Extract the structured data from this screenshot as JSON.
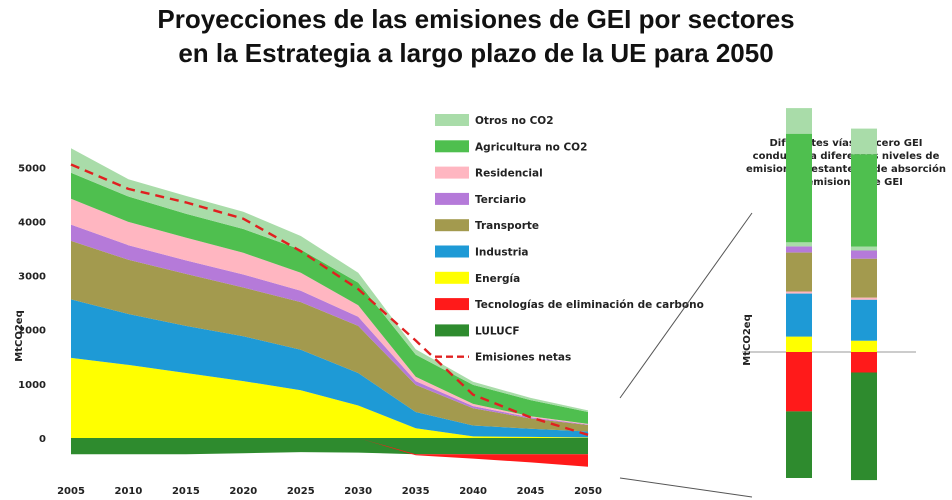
{
  "title_line1": "Proyecciones de las emisiones de GEI por sectores",
  "title_line2": "en la Estrategia a largo plazo de la UE para 2050",
  "chart_data": [
    {
      "type": "area",
      "x": [
        2005,
        2010,
        2015,
        2020,
        2025,
        2030,
        2035,
        2040,
        2045,
        2050
      ],
      "ylabel": "MtCO2eq",
      "ylim": [
        -300,
        5400
      ],
      "yticks": [
        0,
        1000,
        2000,
        3000,
        4000,
        5000
      ],
      "grid": false,
      "legend_position": "top-right",
      "series": [
        {
          "name": "LULUCF",
          "color": "#2e8b2e",
          "values": [
            -300,
            -300,
            -300,
            -280,
            -260,
            -270,
            -300,
            -300,
            -300,
            -300
          ]
        },
        {
          "name": "Tecnologías de eliminación de carbono",
          "color": "#ff1a1a",
          "values": [
            0,
            0,
            0,
            0,
            0,
            0,
            -20,
            -80,
            -150,
            -230
          ]
        },
        {
          "name": "Energía",
          "color": "#ffff00",
          "values": [
            1480,
            1350,
            1200,
            1050,
            880,
            600,
            180,
            30,
            20,
            10
          ]
        },
        {
          "name": "Industria",
          "color": "#1e9ad6",
          "values": [
            1080,
            940,
            870,
            830,
            750,
            600,
            300,
            200,
            150,
            110
          ]
        },
        {
          "name": "Transporte",
          "color": "#a39a4e",
          "values": [
            1080,
            1000,
            960,
            900,
            880,
            870,
            500,
            320,
            190,
            120
          ]
        },
        {
          "name": "Terciario",
          "color": "#b57ad9",
          "values": [
            300,
            270,
            250,
            240,
            210,
            170,
            70,
            40,
            20,
            10
          ]
        },
        {
          "name": "Residencial",
          "color": "#ffb6c1",
          "values": [
            480,
            430,
            420,
            400,
            330,
            210,
            80,
            40,
            20,
            10
          ]
        },
        {
          "name": "Agricultura no CO2",
          "color": "#4fbf4f",
          "values": [
            480,
            470,
            440,
            440,
            430,
            420,
            410,
            350,
            300,
            220
          ]
        },
        {
          "name": "Otros no CO2",
          "color": "#a9dca9",
          "values": [
            450,
            320,
            330,
            320,
            250,
            180,
            100,
            60,
            40,
            30
          ]
        }
      ],
      "net_emissions": {
        "name": "Emisiones netas",
        "color": "#e02020",
        "values": [
          5050,
          4600,
          4350,
          4050,
          3450,
          2750,
          1800,
          800,
          380,
          60
        ]
      }
    },
    {
      "type": "bar",
      "title": "Diferentes vías de cero GEI conducen a diferentes niveles de emisiones restantes y de absorción de emisiones de GEI",
      "ylabel": "MtCO2eq",
      "stacks": [
        [
          {
            "color": "#ff1a1a",
            "value": -580
          },
          {
            "color": "#2e8b2e",
            "value": -650
          },
          {
            "color": "#ffff00",
            "value": 150
          },
          {
            "color": "#1e9ad6",
            "value": 420
          },
          {
            "color": "#ffb6c1",
            "value": 20
          },
          {
            "color": "#a39a4e",
            "value": 380
          },
          {
            "color": "#b57ad9",
            "value": 60
          },
          {
            "color": "#a9dca9",
            "value": 40
          },
          {
            "color": "#4fbf4f",
            "value": 1060
          },
          {
            "color": "#a9dca9",
            "value": 250
          }
        ],
        [
          {
            "color": "#ff1a1a",
            "value": -200
          },
          {
            "color": "#2e8b2e",
            "value": -1050
          },
          {
            "color": "#ffff00",
            "value": 110
          },
          {
            "color": "#1e9ad6",
            "value": 400
          },
          {
            "color": "#ffb6c1",
            "value": 20
          },
          {
            "color": "#a39a4e",
            "value": 380
          },
          {
            "color": "#b57ad9",
            "value": 80
          },
          {
            "color": "#a9dca9",
            "value": 40
          },
          {
            "color": "#4fbf4f",
            "value": 900
          },
          {
            "color": "#a9dca9",
            "value": 250
          }
        ]
      ]
    }
  ]
}
